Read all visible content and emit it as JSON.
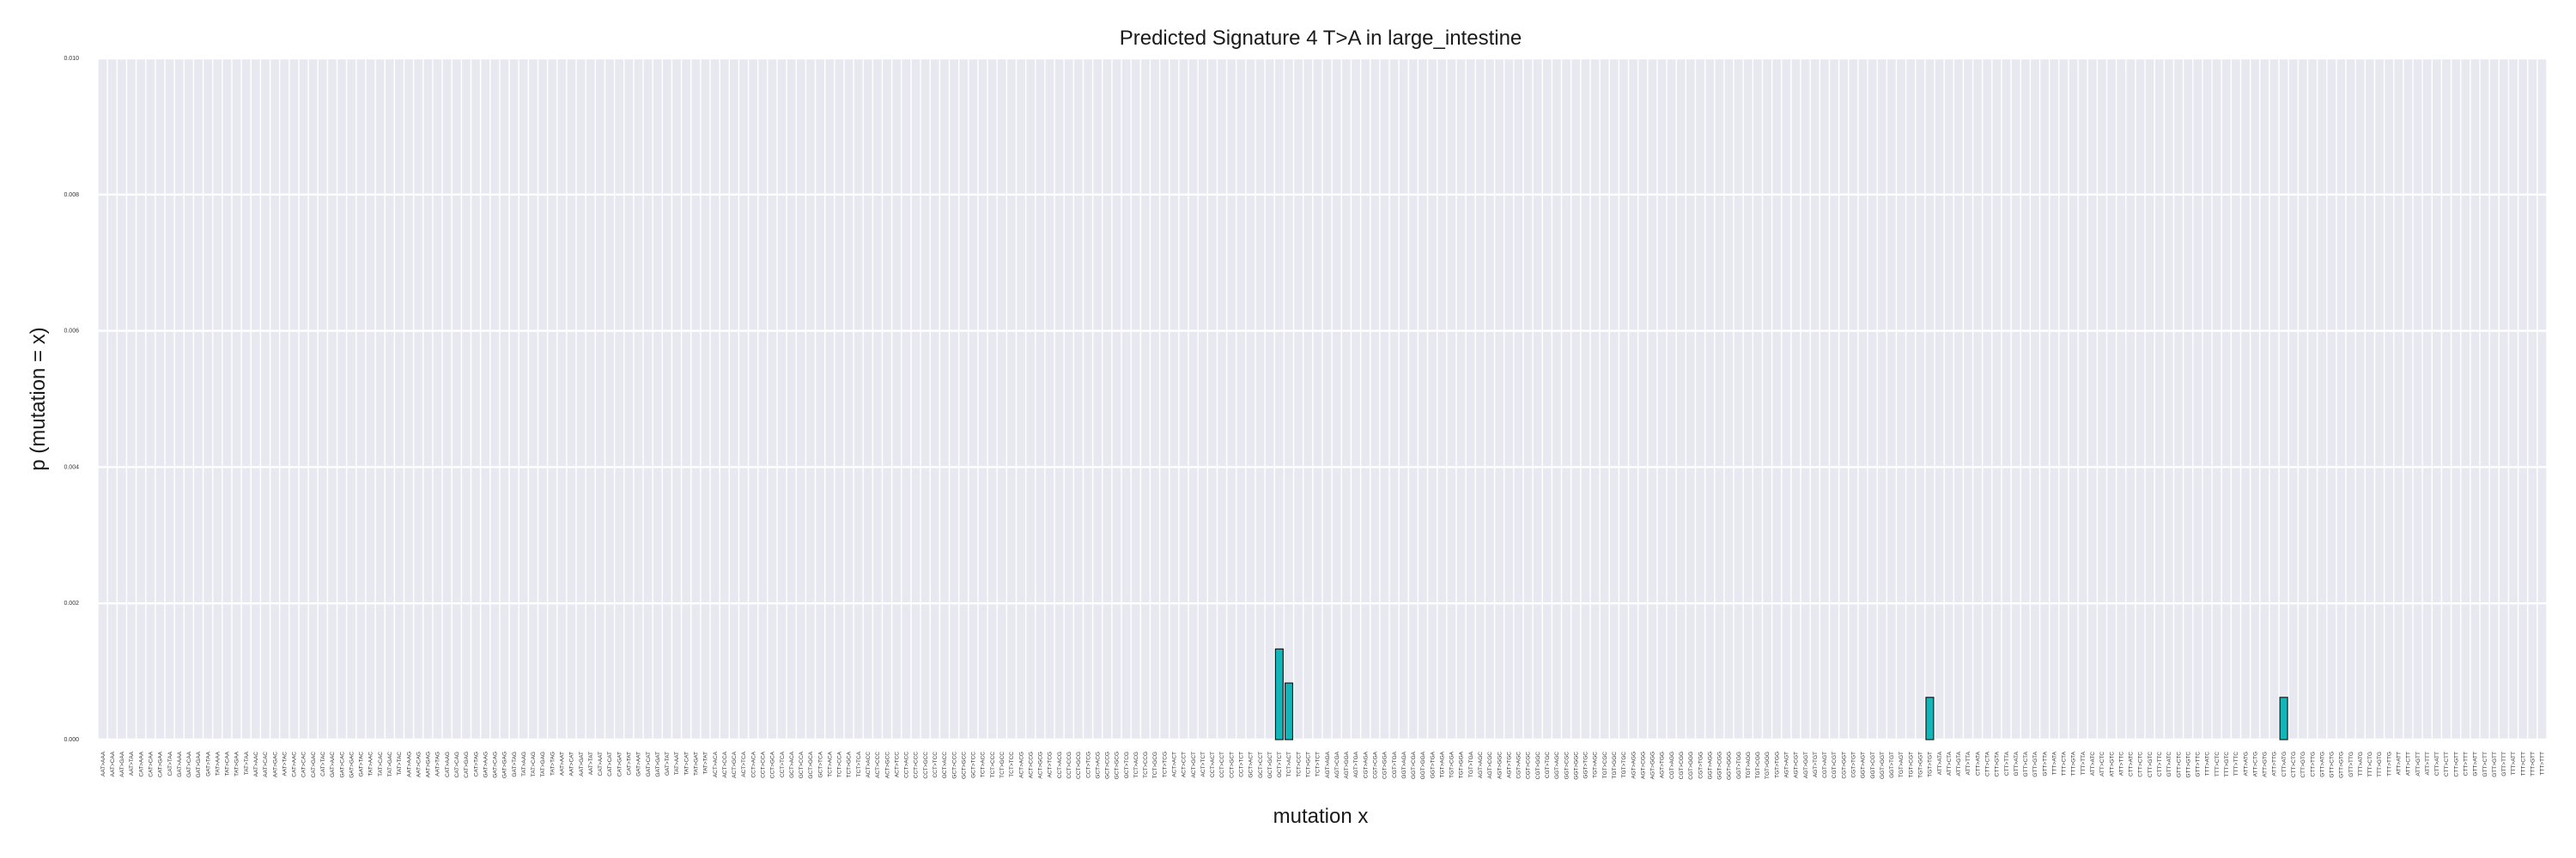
{
  "chart_data": {
    "type": "bar",
    "title": "Predicted Signature 4 T>A in large_intestine",
    "xlabel": "mutation x",
    "ylabel": "p (mutation = x)",
    "ylim": [
      0,
      0.01
    ],
    "yticks": [
      "0.000",
      "0.002",
      "0.004",
      "0.006",
      "0.008",
      "0.010"
    ],
    "grid": true,
    "background_color": "#e8e9f0",
    "grid_color": "#ffffff",
    "bar_color": "#12b5b8",
    "bar_edge_color": "#1a1a1a",
    "categories": [
      "AAT>AAA",
      "AAT>CAA",
      "AAT>GAA",
      "AAT>TAA",
      "CAT>AAA",
      "CAT>CAA",
      "CAT>GAA",
      "CAT>TAA",
      "GAT>AAA",
      "GAT>CAA",
      "GAT>GAA",
      "GAT>TAA",
      "TAT>AAA",
      "TAT>CAA",
      "TAT>GAA",
      "TAT>TAA",
      "AAT>AAC",
      "AAT>CAC",
      "AAT>GAC",
      "AAT>TAC",
      "CAT>AAC",
      "CAT>CAC",
      "CAT>GAC",
      "CAT>TAC",
      "GAT>AAC",
      "GAT>CAC",
      "GAT>GAC",
      "GAT>TAC",
      "TAT>AAC",
      "TAT>CAC",
      "TAT>GAC",
      "TAT>TAC",
      "AAT>AAG",
      "AAT>CAG",
      "AAT>GAG",
      "AAT>TAG",
      "CAT>AAG",
      "CAT>CAG",
      "CAT>GAG",
      "CAT>TAG",
      "GAT>AAG",
      "GAT>CAG",
      "GAT>GAG",
      "GAT>TAG",
      "TAT>AAG",
      "TAT>CAG",
      "TAT>GAG",
      "TAT>TAG",
      "AAT>AAT",
      "AAT>CAT",
      "AAT>GAT",
      "AAT>TAT",
      "CAT>AAT",
      "CAT>CAT",
      "CAT>GAT",
      "CAT>TAT",
      "GAT>AAT",
      "GAT>CAT",
      "GAT>GAT",
      "GAT>TAT",
      "TAT>AAT",
      "TAT>CAT",
      "TAT>GAT",
      "TAT>TAT",
      "ACT>ACA",
      "ACT>CCA",
      "ACT>GCA",
      "ACT>TCA",
      "CCT>ACA",
      "CCT>CCA",
      "CCT>GCA",
      "CCT>TCA",
      "GCT>ACA",
      "GCT>CCA",
      "GCT>GCA",
      "GCT>TCA",
      "TCT>ACA",
      "TCT>CCA",
      "TCT>GCA",
      "TCT>TCA",
      "ACT>ACC",
      "ACT>CCC",
      "ACT>GCC",
      "ACT>TCC",
      "CCT>ACC",
      "CCT>CCC",
      "CCT>GCC",
      "CCT>TCC",
      "GCT>ACC",
      "GCT>CCC",
      "GCT>GCC",
      "GCT>TCC",
      "TCT>ACC",
      "TCT>CCC",
      "TCT>GCC",
      "TCT>TCC",
      "ACT>ACG",
      "ACT>CCG",
      "ACT>GCG",
      "ACT>TCG",
      "CCT>ACG",
      "CCT>CCG",
      "CCT>GCG",
      "CCT>TCG",
      "GCT>ACG",
      "GCT>CCG",
      "GCT>GCG",
      "GCT>TCG",
      "TCT>ACG",
      "TCT>CCG",
      "TCT>GCG",
      "TCT>TCG",
      "ACT>ACT",
      "ACT>CCT",
      "ACT>GCT",
      "ACT>TCT",
      "CCT>ACT",
      "CCT>CCT",
      "CCT>GCT",
      "CCT>TCT",
      "GCT>ACT",
      "GCT>CCT",
      "GCT>GCT",
      "GCT>TCT",
      "TCT>ACT",
      "TCT>CCT",
      "TCT>GCT",
      "TCT>TCT",
      "AGT>AGA",
      "AGT>CGA",
      "AGT>GGA",
      "AGT>TGA",
      "CGT>AGA",
      "CGT>CGA",
      "CGT>GGA",
      "CGT>TGA",
      "GGT>AGA",
      "GGT>CGA",
      "GGT>GGA",
      "GGT>TGA",
      "TGT>AGA",
      "TGT>CGA",
      "TGT>GGA",
      "TGT>TGA",
      "AGT>AGC",
      "AGT>CGC",
      "AGT>GGC",
      "AGT>TGC",
      "CGT>AGC",
      "CGT>CGC",
      "CGT>GGC",
      "CGT>TGC",
      "GGT>AGC",
      "GGT>CGC",
      "GGT>GGC",
      "GGT>TGC",
      "TGT>AGC",
      "TGT>CGC",
      "TGT>GGC",
      "TGT>TGC",
      "AGT>AGG",
      "AGT>CGG",
      "AGT>GGG",
      "AGT>TGG",
      "CGT>AGG",
      "CGT>CGG",
      "CGT>GGG",
      "CGT>TGG",
      "GGT>AGG",
      "GGT>CGG",
      "GGT>GGG",
      "GGT>TGG",
      "TGT>AGG",
      "TGT>CGG",
      "TGT>GGG",
      "TGT>TGG",
      "AGT>AGT",
      "AGT>CGT",
      "AGT>GGT",
      "AGT>TGT",
      "CGT>AGT",
      "CGT>CGT",
      "CGT>GGT",
      "CGT>TGT",
      "GGT>AGT",
      "GGT>CGT",
      "GGT>GGT",
      "GGT>TGT",
      "TGT>AGT",
      "TGT>CGT",
      "TGT>GGT",
      "TGT>TGT",
      "ATT>ATA",
      "ATT>CTA",
      "ATT>GTA",
      "ATT>TTA",
      "CTT>ATA",
      "CTT>CTA",
      "CTT>GTA",
      "CTT>TTA",
      "GTT>ATA",
      "GTT>CTA",
      "GTT>GTA",
      "GTT>TTA",
      "TTT>ATA",
      "TTT>CTA",
      "TTT>GTA",
      "TTT>TTA",
      "ATT>ATC",
      "ATT>CTC",
      "ATT>GTC",
      "ATT>TTC",
      "CTT>ATC",
      "CTT>CTC",
      "CTT>GTC",
      "CTT>TTC",
      "GTT>ATC",
      "GTT>CTC",
      "GTT>GTC",
      "GTT>TTC",
      "TTT>ATC",
      "TTT>CTC",
      "TTT>GTC",
      "TTT>TTC",
      "ATT>ATG",
      "ATT>CTG",
      "ATT>GTG",
      "ATT>TTG",
      "CTT>ATG",
      "CTT>CTG",
      "CTT>GTG",
      "CTT>TTG",
      "GTT>ATG",
      "GTT>CTG",
      "GTT>GTG",
      "GTT>TTG",
      "TTT>ATG",
      "TTT>CTG",
      "TTT>GTG",
      "TTT>TTG",
      "ATT>ATT",
      "ATT>CTT",
      "ATT>GTT",
      "ATT>TTT",
      "CTT>ATT",
      "CTT>CTT",
      "CTT>GTT",
      "CTT>TTT",
      "GTT>ATT",
      "GTT>CTT",
      "GTT>GTT",
      "GTT>TTT",
      "TTT>ATT",
      "TTT>CTT",
      "TTT>GTT",
      "TTT>TTT"
    ],
    "values": [
      0,
      0,
      0,
      0,
      0,
      0,
      0,
      0,
      0,
      0,
      0,
      0,
      0,
      0,
      0,
      0,
      0,
      0,
      0,
      0,
      0,
      0,
      0,
      0,
      0,
      0,
      0,
      0,
      0,
      0,
      0,
      0,
      0,
      0,
      0,
      0,
      0,
      0,
      0,
      0,
      0,
      0,
      0,
      0,
      0,
      0,
      0,
      0,
      0,
      0,
      0,
      0,
      0,
      0,
      0,
      0,
      0,
      0,
      0,
      0,
      0,
      0,
      0,
      0,
      0,
      0,
      0,
      0,
      0,
      0,
      0,
      0,
      0,
      0,
      0,
      0,
      0,
      0,
      0,
      0,
      0,
      0,
      0,
      0,
      0,
      0,
      0,
      0,
      0,
      0,
      0,
      0,
      0,
      0,
      0,
      0,
      0,
      0,
      0,
      0,
      0,
      0,
      0,
      0,
      0,
      0,
      0,
      0,
      0,
      0,
      0,
      0,
      0,
      0,
      0,
      0,
      0,
      0,
      0,
      0,
      0,
      0,
      0,
      0.00133,
      0.00083,
      0,
      0,
      0,
      0,
      0,
      0,
      0,
      0,
      0,
      0,
      0,
      0,
      0,
      0,
      0,
      0,
      0,
      0,
      0,
      0,
      0,
      0,
      0,
      0,
      0,
      0,
      0,
      0,
      0,
      0,
      0,
      0,
      0,
      0,
      0,
      0,
      0,
      0,
      0,
      0,
      0,
      0,
      0,
      0,
      0,
      0,
      0,
      0,
      0,
      0,
      0,
      0,
      0,
      0,
      0,
      0,
      0,
      0,
      0,
      0,
      0,
      0,
      0,
      0,
      0,
      0,
      0.00062,
      0,
      0,
      0,
      0,
      0,
      0,
      0,
      0,
      0,
      0,
      0,
      0,
      0,
      0,
      0,
      0,
      0,
      0,
      0,
      0,
      0,
      0,
      0,
      0,
      0,
      0,
      0,
      0,
      0,
      0,
      0,
      0,
      0,
      0,
      0,
      0,
      0.00062,
      0,
      0,
      0,
      0,
      0,
      0,
      0,
      0,
      0,
      0,
      0,
      0,
      0,
      0,
      0,
      0,
      0,
      0,
      0,
      0,
      0,
      0,
      0,
      0,
      0,
      0,
      0
    ]
  }
}
